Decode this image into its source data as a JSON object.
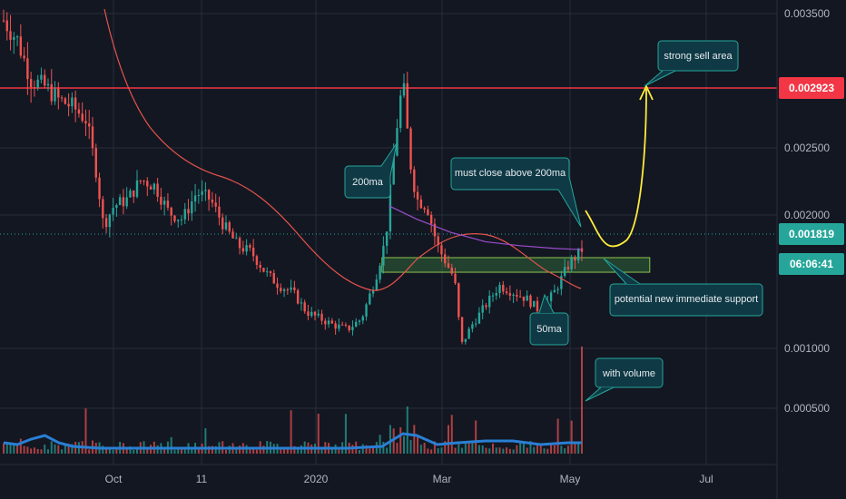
{
  "chart_data": {
    "type": "candlestick",
    "x_axis": {
      "ticks": [
        "Oct",
        "11",
        "2020",
        "Mar",
        "May",
        "Jul"
      ]
    },
    "y_axis": {
      "ticks": [
        "0.003500",
        "0.002500",
        "0.002000",
        "0.001000",
        "0.000500"
      ],
      "range": [
        0.0002,
        0.0036
      ]
    },
    "price_tags": [
      {
        "label": "0.002923",
        "value": 0.002923,
        "color": "#f23645"
      },
      {
        "label": "0.001819",
        "value": 0.001819,
        "color": "#26a69a"
      },
      {
        "label": "06:06:41",
        "color": "#26a69a"
      }
    ],
    "price_path": [
      [
        0,
        0.00355
      ],
      [
        0.02,
        0.0034
      ],
      [
        0.04,
        0.0031
      ],
      [
        0.06,
        0.00305
      ],
      [
        0.08,
        0.00295
      ],
      [
        0.1,
        0.0029
      ],
      [
        0.12,
        0.0028
      ],
      [
        0.135,
        0.0024
      ],
      [
        0.145,
        0.002
      ],
      [
        0.16,
        0.00215
      ],
      [
        0.18,
        0.0022
      ],
      [
        0.2,
        0.00235
      ],
      [
        0.22,
        0.0023
      ],
      [
        0.24,
        0.0021
      ],
      [
        0.26,
        0.00205
      ],
      [
        0.28,
        0.00225
      ],
      [
        0.3,
        0.0022
      ],
      [
        0.32,
        0.002
      ],
      [
        0.34,
        0.00185
      ],
      [
        0.36,
        0.0018
      ],
      [
        0.38,
        0.00165
      ],
      [
        0.4,
        0.00155
      ],
      [
        0.42,
        0.0015
      ],
      [
        0.44,
        0.00135
      ],
      [
        0.46,
        0.0013
      ],
      [
        0.48,
        0.00125
      ],
      [
        0.5,
        0.00122
      ],
      [
        0.52,
        0.0013
      ],
      [
        0.54,
        0.0016
      ],
      [
        0.555,
        0.0019
      ],
      [
        0.57,
        0.0027
      ],
      [
        0.58,
        0.0031
      ],
      [
        0.59,
        0.0025
      ],
      [
        0.6,
        0.0022
      ],
      [
        0.615,
        0.00215
      ],
      [
        0.63,
        0.00185
      ],
      [
        0.645,
        0.0017
      ],
      [
        0.655,
        0.0016
      ],
      [
        0.665,
        0.0011
      ],
      [
        0.68,
        0.00125
      ],
      [
        0.7,
        0.0014
      ],
      [
        0.72,
        0.00155
      ],
      [
        0.74,
        0.0015
      ],
      [
        0.76,
        0.00145
      ],
      [
        0.78,
        0.00135
      ],
      [
        0.8,
        0.0015
      ],
      [
        0.82,
        0.0017
      ],
      [
        0.84,
        0.00182
      ]
    ],
    "volume_path": [
      [
        0,
        0.06
      ],
      [
        0.02,
        0.05
      ],
      [
        0.04,
        0.08
      ],
      [
        0.06,
        0.1
      ],
      [
        0.08,
        0.06
      ],
      [
        0.1,
        0.04
      ],
      [
        0.14,
        0.03
      ],
      [
        0.2,
        0.03
      ],
      [
        0.3,
        0.03
      ],
      [
        0.4,
        0.03
      ],
      [
        0.5,
        0.03
      ],
      [
        0.55,
        0.04
      ],
      [
        0.58,
        0.11
      ],
      [
        0.6,
        0.1
      ],
      [
        0.63,
        0.05
      ],
      [
        0.66,
        0.06
      ],
      [
        0.7,
        0.07
      ],
      [
        0.74,
        0.07
      ],
      [
        0.78,
        0.05
      ],
      [
        0.82,
        0.06
      ],
      [
        0.84,
        0.06
      ]
    ],
    "ma200_path": [
      [
        0.56,
        0.00215
      ],
      [
        0.6,
        0.00205
      ],
      [
        0.65,
        0.00195
      ],
      [
        0.7,
        0.00188
      ],
      [
        0.75,
        0.00185
      ],
      [
        0.8,
        0.00183
      ],
      [
        0.84,
        0.00182
      ]
    ],
    "support_zone": {
      "x0": 0.55,
      "x1": 0.93,
      "y0": 0.00165,
      "y1": 0.00176
    },
    "annotations": [
      {
        "text": "strong sell area"
      },
      {
        "text": "200ma"
      },
      {
        "text": "must close above 200ma"
      },
      {
        "text": "potential new immediate support"
      },
      {
        "text": "50ma"
      },
      {
        "text": "with volume"
      }
    ]
  }
}
